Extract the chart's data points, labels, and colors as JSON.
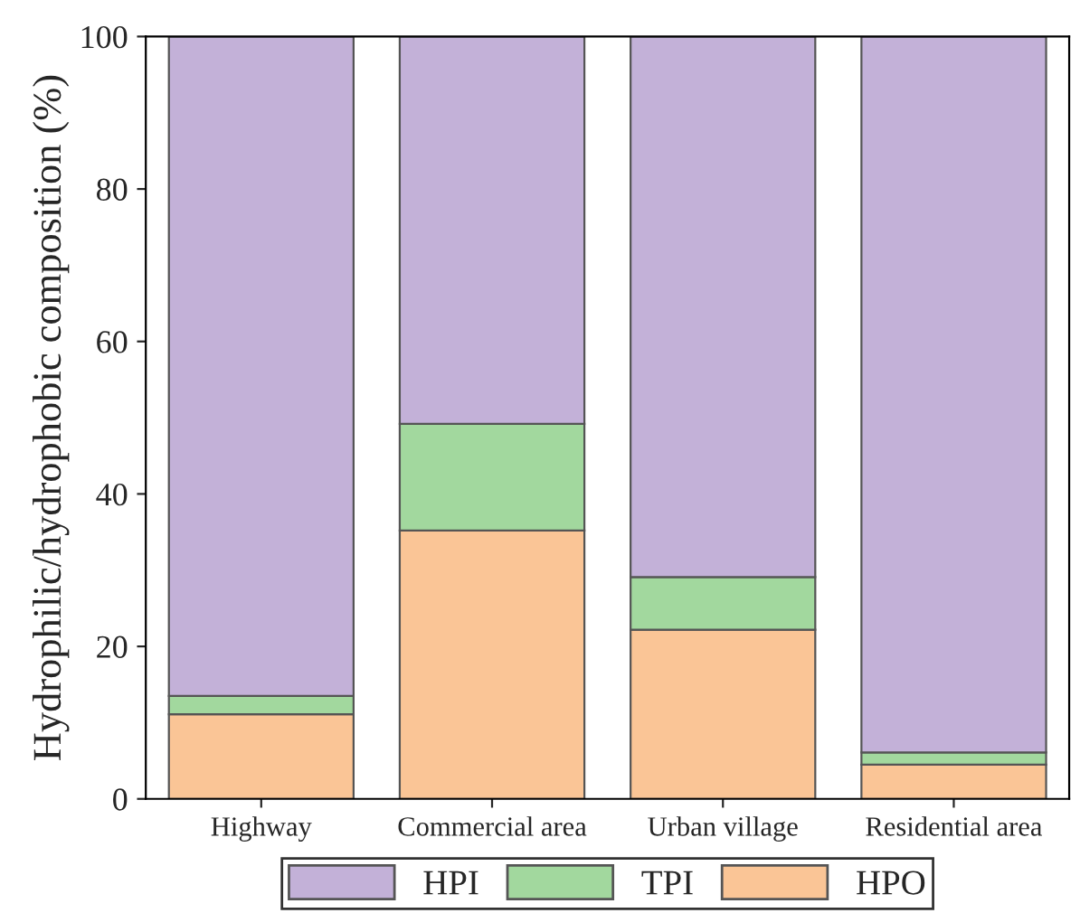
{
  "chart_data": {
    "type": "bar",
    "stacked": true,
    "ylabel": "Hydrophilic/hydrophobic composition (%)",
    "categories": [
      "Highway",
      "Commercial area",
      "Urban village",
      "Residential area"
    ],
    "series": [
      {
        "name": "HPO",
        "color": "#fac596",
        "values": [
          11.1,
          35.2,
          22.2,
          4.5
        ]
      },
      {
        "name": "TPI",
        "color": "#a2d89e",
        "values": [
          2.4,
          14.0,
          6.9,
          1.6
        ]
      },
      {
        "name": "HPI",
        "color": "#c3b1d8",
        "values": [
          86.5,
          50.8,
          70.9,
          93.9
        ]
      }
    ],
    "ylim": [
      0,
      100
    ],
    "yticks": [
      0,
      20,
      40,
      60,
      80,
      100
    ],
    "grid": false,
    "legend": "bottom"
  }
}
